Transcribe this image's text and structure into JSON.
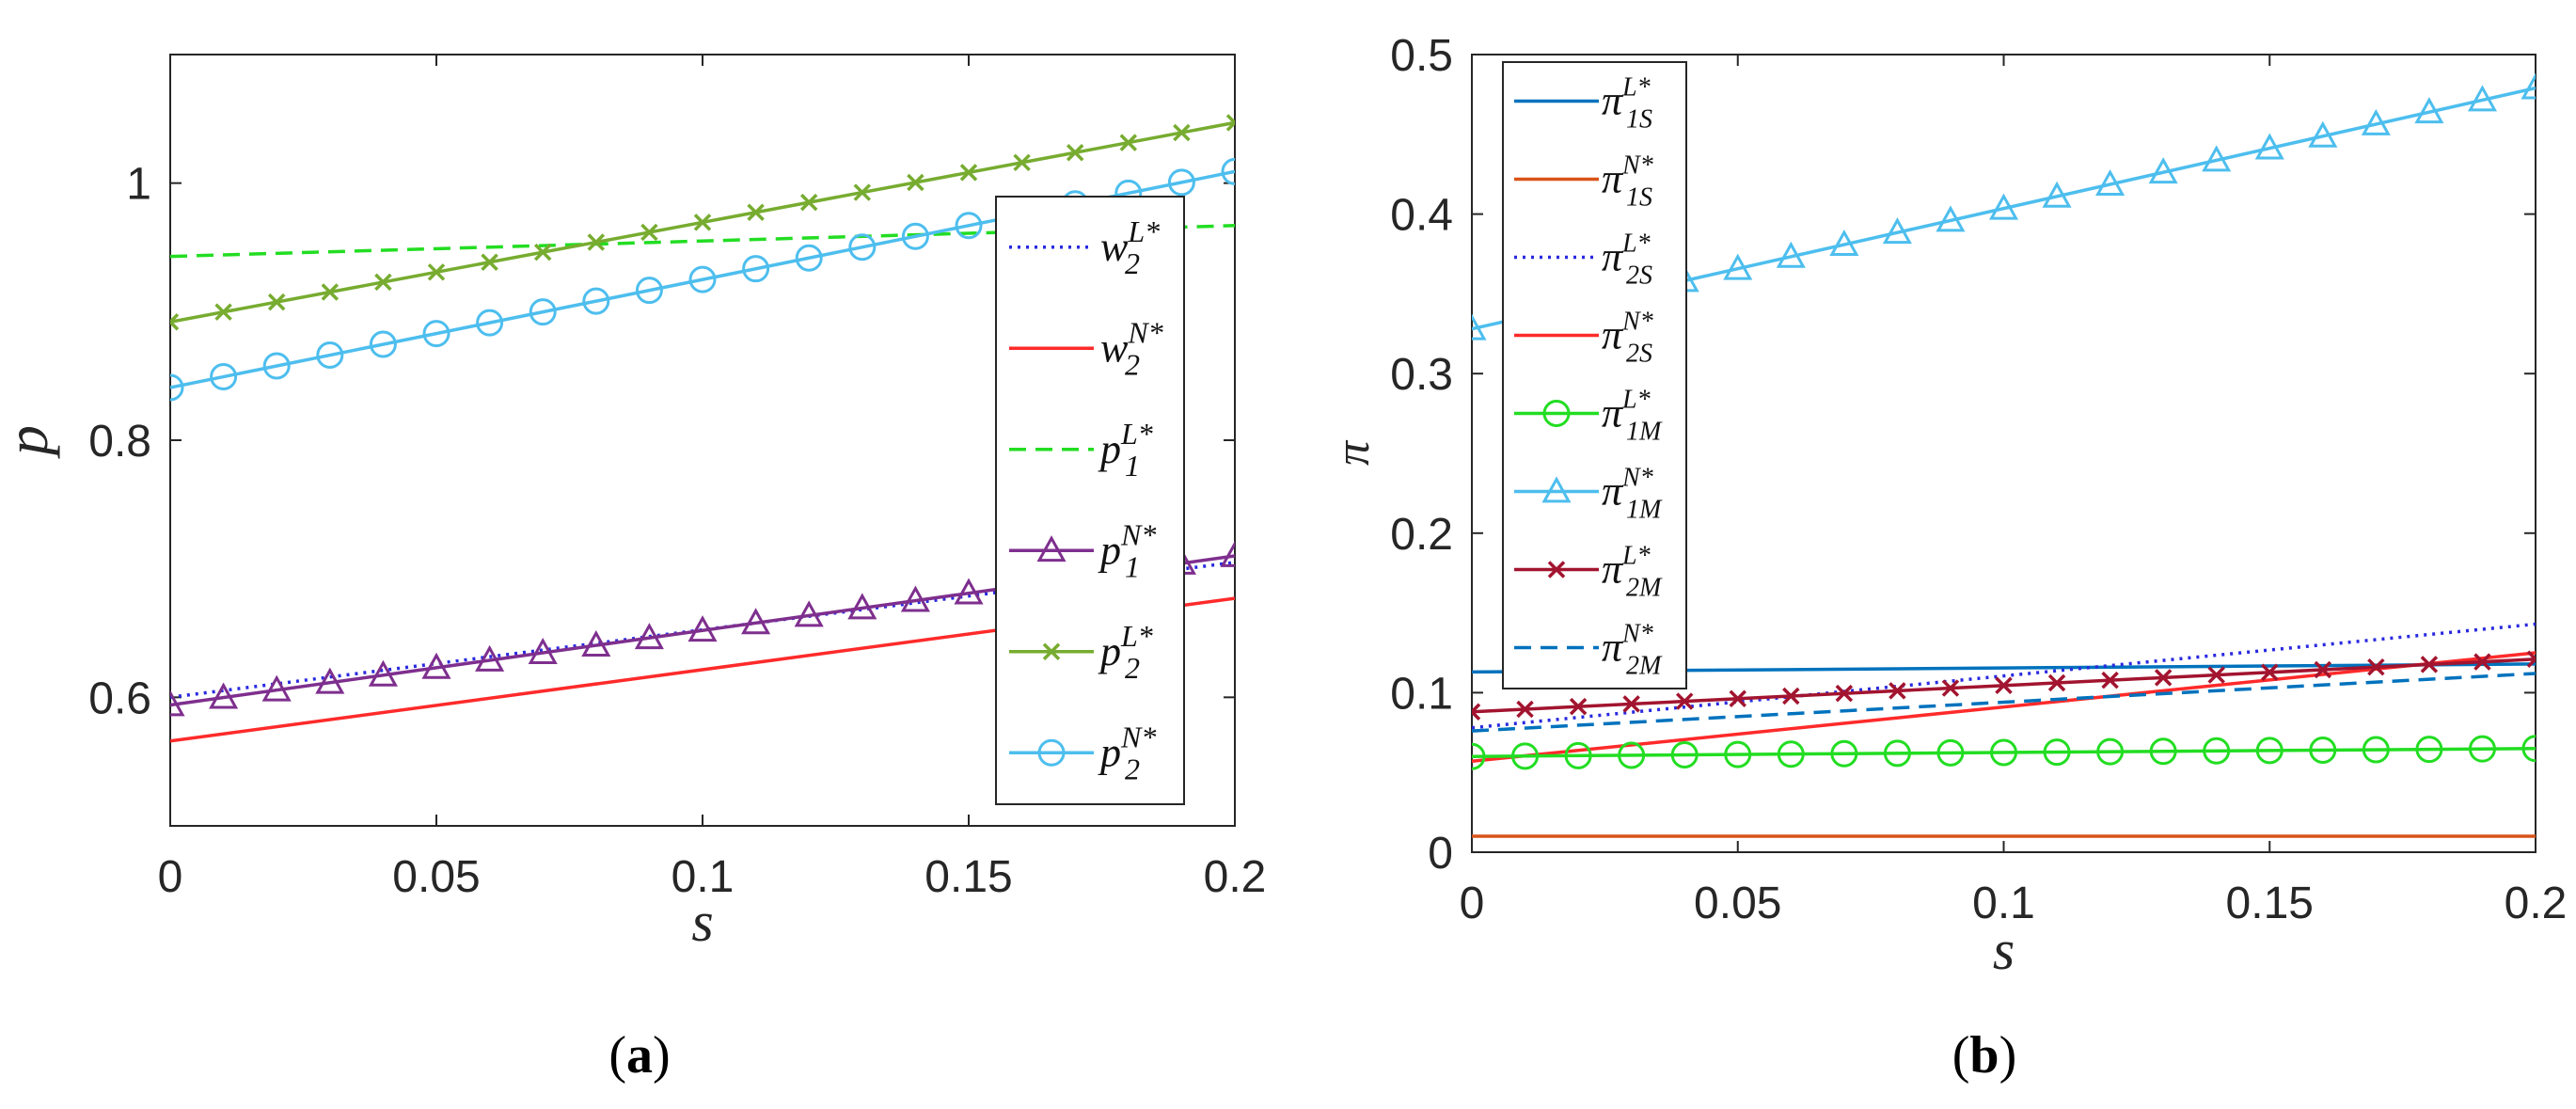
{
  "chart_data": [
    {
      "type": "line",
      "caption_open": "(",
      "caption_letter": "a",
      "caption_close": ")",
      "xlabel": "s",
      "ylabel": "p",
      "xlim": [
        0,
        0.2
      ],
      "ylim": [
        0.5,
        1.1
      ],
      "xticks": [
        0,
        0.05,
        0.1,
        0.15,
        0.2
      ],
      "xtick_labels": [
        "0",
        "0.05",
        "0.1",
        "0.15",
        "0.2"
      ],
      "yticks": [
        0.6,
        0.8,
        1.0
      ],
      "ytick_labels": [
        "0.6",
        "0.8",
        "1"
      ],
      "legend_position": "right",
      "series": [
        {
          "name": "w2L*",
          "base": "w",
          "sub": "2",
          "sup": "L*",
          "color": "#2929e0",
          "style": "dotted",
          "marker": "none",
          "x": [
            0,
            0.2
          ],
          "values": [
            0.6,
            0.705
          ]
        },
        {
          "name": "w2N*",
          "base": "w",
          "sub": "2",
          "sup": "N*",
          "color": "#ff2a2a",
          "style": "solid",
          "marker": "none",
          "x": [
            0,
            0.2
          ],
          "values": [
            0.566,
            0.677
          ]
        },
        {
          "name": "p1L*",
          "base": "p",
          "sub": "1",
          "sup": "L*",
          "color": "#22dd22",
          "style": "dashed",
          "marker": "none",
          "x": [
            0,
            0.2
          ],
          "values": [
            0.943,
            0.967
          ]
        },
        {
          "name": "p1N*",
          "base": "p",
          "sub": "1",
          "sup": "N*",
          "color": "#7e2f8e",
          "style": "solid",
          "marker": "triangle",
          "x": [
            0,
            0.2
          ],
          "values": [
            0.594,
            0.71
          ]
        },
        {
          "name": "p2L*",
          "base": "p",
          "sub": "2",
          "sup": "L*",
          "color": "#77ac30",
          "style": "solid",
          "marker": "x",
          "x": [
            0,
            0.2
          ],
          "values": [
            0.892,
            1.047
          ]
        },
        {
          "name": "p2N*",
          "base": "p",
          "sub": "2",
          "sup": "N*",
          "color": "#4dbeee",
          "style": "solid",
          "marker": "circle",
          "x": [
            0,
            0.2
          ],
          "values": [
            0.841,
            1.009
          ]
        }
      ]
    },
    {
      "type": "line",
      "caption_open": "(",
      "caption_letter": "b",
      "caption_close": ")",
      "xlabel": "s",
      "ylabel": "π",
      "xlim": [
        0,
        0.2
      ],
      "ylim": [
        0,
        0.5
      ],
      "xticks": [
        0,
        0.05,
        0.1,
        0.15,
        0.2
      ],
      "xtick_labels": [
        "0",
        "0.05",
        "0.1",
        "0.15",
        "0.2"
      ],
      "yticks": [
        0,
        0.1,
        0.2,
        0.3,
        0.4,
        0.5
      ],
      "ytick_labels": [
        "0",
        "0.1",
        "0.2",
        "0.3",
        "0.4",
        "0.5"
      ],
      "legend_position": "top-left",
      "series": [
        {
          "name": "π1SL*",
          "base": "π",
          "sub": "1S",
          "sup": "L*",
          "color": "#0072bd",
          "style": "solid",
          "marker": "none",
          "x": [
            0,
            0.2
          ],
          "values": [
            0.113,
            0.118
          ]
        },
        {
          "name": "π1SN*",
          "base": "π",
          "sub": "1S",
          "sup": "N*",
          "color": "#d95319",
          "style": "solid",
          "marker": "none",
          "x": [
            0,
            0.2
          ],
          "values": [
            0.01,
            0.01
          ]
        },
        {
          "name": "π2SL*",
          "base": "π",
          "sub": "2S",
          "sup": "L*",
          "color": "#2929e0",
          "style": "dotted",
          "marker": "none",
          "x": [
            0,
            0.2
          ],
          "values": [
            0.078,
            0.143
          ]
        },
        {
          "name": "π2SN*",
          "base": "π",
          "sub": "2S",
          "sup": "N*",
          "color": "#ff2a2a",
          "style": "solid",
          "marker": "none",
          "x": [
            0,
            0.2
          ],
          "values": [
            0.057,
            0.125
          ]
        },
        {
          "name": "π1ML*",
          "base": "π",
          "sub": "1M",
          "sup": "L*",
          "color": "#22dd22",
          "style": "solid",
          "marker": "circle",
          "x": [
            0,
            0.2
          ],
          "values": [
            0.06,
            0.065
          ]
        },
        {
          "name": "π1MN*",
          "base": "π",
          "sub": "1M",
          "sup": "N*",
          "color": "#4dbeee",
          "style": "solid",
          "marker": "triangle",
          "x": [
            0,
            0.2
          ],
          "values": [
            0.328,
            0.479
          ]
        },
        {
          "name": "π2ML*",
          "base": "π",
          "sub": "2M",
          "sup": "L*",
          "color": "#a2142f",
          "style": "solid",
          "marker": "x",
          "x": [
            0,
            0.2
          ],
          "values": [
            0.088,
            0.121
          ]
        },
        {
          "name": "π2MN*",
          "base": "π",
          "sub": "2M",
          "sup": "N*",
          "color": "#0072bd",
          "style": "dashed",
          "marker": "none",
          "x": [
            0,
            0.2
          ],
          "values": [
            0.076,
            0.112
          ]
        }
      ]
    }
  ]
}
